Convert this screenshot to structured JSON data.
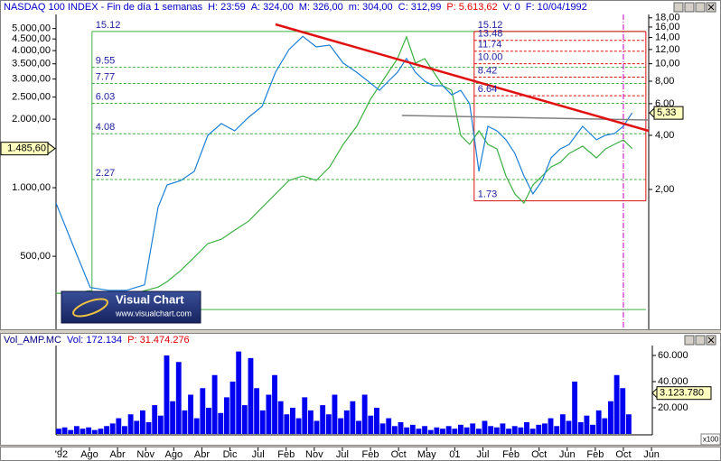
{
  "chart_data": {
    "type": "line",
    "header": [
      {
        "text": "NASDAQ 100 INDEX - Fin de día 1 semanas",
        "color": "#0000c8"
      },
      {
        "text": "H: 23:59",
        "color": "#0000c8"
      },
      {
        "text": "A: 324,00",
        "color": "#0000c8"
      },
      {
        "text": "M: 326,00",
        "color": "#0000c8"
      },
      {
        "text": "m: 304,00",
        "color": "#0000c8"
      },
      {
        "text": "C: 312,99",
        "color": "#0000c8"
      },
      {
        "text": "P: 5.613,62",
        "color": "#e00000"
      },
      {
        "text": "V: 0",
        "color": "#0000c8"
      },
      {
        "text": "F: 10/04/1992",
        "color": "#0000c8"
      }
    ],
    "x": [
      -0.19,
      0.39,
      1.03,
      1.67,
      2.32,
      2.96,
      3.44,
      3.76,
      4.24,
      4.73,
      5.21,
      5.69,
      6.17,
      6.66,
      7.14,
      7.62,
      8.1,
      8.59,
      9.07,
      9.55,
      10.03,
      10.51,
      11.0,
      11.32,
      11.64,
      11.96,
      12.28,
      12.6,
      12.93,
      13.25,
      13.57,
      13.89,
      14.21,
      14.53,
      14.86,
      15.18,
      15.5,
      15.82,
      16.14,
      16.46,
      16.78,
      17.11,
      17.43,
      17.75,
      18.07,
      18.55,
      19.04,
      19.36,
      19.68,
      20.0,
      20.31
    ],
    "xlim": [
      -0.19,
      21.03
    ],
    "xticks": [
      {
        "value": 0,
        "label": "'92"
      },
      {
        "value": 1,
        "label": "Ago"
      },
      {
        "value": 2,
        "label": "Abr"
      },
      {
        "value": 3,
        "label": "Nov"
      },
      {
        "value": 4,
        "label": "Ago"
      },
      {
        "value": 5,
        "label": "Abr"
      },
      {
        "value": 6,
        "label": "Dic"
      },
      {
        "value": 7,
        "label": "Jul"
      },
      {
        "value": 8,
        "label": "Feb"
      },
      {
        "value": 9,
        "label": "Nov"
      },
      {
        "value": 10,
        "label": "Jul"
      },
      {
        "value": 11,
        "label": "Feb"
      },
      {
        "value": 12,
        "label": "Oct"
      },
      {
        "value": 13,
        "label": "May"
      },
      {
        "value": 14,
        "label": "01"
      },
      {
        "value": 15,
        "label": "Jul"
      },
      {
        "value": 16,
        "label": "Feb"
      },
      {
        "value": 17,
        "label": "Oct"
      },
      {
        "value": 18,
        "label": "Jun"
      },
      {
        "value": 19,
        "label": "Feb"
      },
      {
        "value": 20,
        "label": "Oct"
      },
      {
        "value": 21,
        "label": "Jun"
      }
    ],
    "yscale": "log",
    "ylim": [
      239,
      5766
    ],
    "yticks": [
      {
        "value": 500,
        "label": "500,00"
      },
      {
        "value": 1000,
        "label": "1.000,00"
      },
      {
        "value": 2000,
        "label": "2.000,00"
      },
      {
        "value": 2500,
        "label": "2.500,00"
      },
      {
        "value": 3000,
        "label": "3.000,00"
      },
      {
        "value": 3500,
        "label": "3.500,00"
      },
      {
        "value": 4000,
        "label": "4.000,00"
      },
      {
        "value": 4500,
        "label": "4.500,00"
      },
      {
        "value": 5000,
        "label": "5.000,00"
      }
    ],
    "y2scale": "log",
    "y2lim": [
      0.334,
      18.8
    ],
    "y2ticks": [
      {
        "value": 2,
        "label": "2,00"
      },
      {
        "value": 4,
        "label": "4,00"
      },
      {
        "value": 6,
        "label": "6,00"
      },
      {
        "value": 8,
        "label": "8,00"
      },
      {
        "value": 10,
        "label": "10,00"
      },
      {
        "value": 12,
        "label": "12,00"
      },
      {
        "value": 14,
        "label": "14,00"
      },
      {
        "value": 16,
        "label": "16,00"
      },
      {
        "value": 18,
        "label": "18,00"
      }
    ],
    "series": [
      {
        "color": "#3cb043",
        "last_label": "1.485,60",
        "values": [
          344,
          344,
          353,
          329,
          335,
          353,
          366,
          387,
          432,
          495,
          568,
          594,
          651,
          713,
          818,
          938,
          1076,
          1126,
          1076,
          1234,
          1550,
          1860,
          2445,
          2804,
          3215,
          3687,
          4600,
          3522,
          3687,
          3215,
          2804,
          2678,
          1697,
          1550,
          1777,
          1550,
          1480,
          1126,
          938,
          856,
          1028,
          1126,
          1234,
          1291,
          1414,
          1522,
          1352,
          1480,
          1550,
          1622,
          1485.6
        ]
      },
      {
        "color": "#1c7fd6",
        "axis": "y2",
        "last_label": "5,33",
        "values": [
          1.68,
          1.0,
          0.57,
          0.55,
          0.55,
          0.59,
          1.59,
          2.12,
          2.24,
          2.52,
          4.0,
          4.65,
          4.24,
          5.04,
          5.79,
          8.97,
          11.98,
          14.2,
          12.4,
          12.7,
          10.08,
          8.97,
          7.81,
          7.12,
          8.0,
          8.97,
          10.7,
          8.97,
          8.0,
          7.55,
          7.55,
          6.72,
          7.12,
          5.99,
          2.52,
          4.49,
          4.24,
          3.78,
          3.17,
          2.38,
          1.89,
          2.24,
          3.0,
          3.36,
          3.56,
          4.49,
          3.78,
          4.0,
          4.09,
          4.49,
          5.33
        ]
      }
    ],
    "trendlines": [
      {
        "color": "#808080",
        "width": 1.5,
        "axis": "y2",
        "x": [
          12.12,
          20.9
        ],
        "values": [
          5.16,
          4.87
        ]
      },
      {
        "color": "#e01010",
        "width": 2.5,
        "axis": "y2",
        "x": [
          7.62,
          20.9
        ],
        "values": [
          16.56,
          4.24
        ]
      }
    ],
    "fibonacci": [
      {
        "color": "#3cb043",
        "x": [
          1.09,
          20.8
        ],
        "closed": false,
        "base": 0.43,
        "levels": [
          15.12,
          9.55,
          7.77,
          6.03,
          4.08,
          2.27
        ]
      },
      {
        "color": "#e01010",
        "x": [
          14.69,
          20.8
        ],
        "closed": true,
        "levels": [
          15.12,
          13.48,
          11.74,
          {
            "value": 10,
            "label": "10.00"
          },
          8.42,
          6.64,
          1.73
        ]
      }
    ],
    "marker_x": 20.0,
    "logo": {
      "title": "Visual Chart",
      "url": "www.visualchart.com"
    },
    "volume": {
      "header": [
        {
          "text": "Vol_AMP.MC",
          "color": "#000080"
        },
        {
          "text": "Vol: 172.134",
          "color": "#0000c8"
        },
        {
          "text": "P: 31.474.276",
          "color": "#e00000"
        }
      ],
      "color": "#0000f0",
      "ylim": [
        0,
        66207
      ],
      "yticks": [
        {
          "value": 20000,
          "label": "20.000"
        },
        {
          "value": 40000,
          "label": "40.000"
        },
        {
          "value": 60000,
          "label": "60.000"
        }
      ],
      "current": {
        "value": 31237.8,
        "label": "3.123.780"
      },
      "multiplier": "x100",
      "values": [
        4000,
        5000,
        3000,
        6000,
        4000,
        5000,
        3000,
        4000,
        6000,
        8000,
        12000,
        6000,
        15000,
        10000,
        18000,
        9000,
        22000,
        14000,
        60000,
        25000,
        55000,
        18000,
        30000,
        12000,
        35000,
        20000,
        45000,
        16000,
        28000,
        40000,
        63000,
        22000,
        58000,
        35000,
        18000,
        30000,
        45000,
        25000,
        15000,
        20000,
        12000,
        28000,
        18000,
        10000,
        22000,
        15000,
        30000,
        12000,
        18000,
        25000,
        10000,
        30000,
        14000,
        20000,
        8000,
        12000,
        6000,
        9000,
        5000,
        7000,
        4000,
        6000,
        3000,
        5000,
        4000,
        6000,
        4000,
        7000,
        5000,
        8000,
        4000,
        10000,
        6000,
        5000,
        8000,
        4000,
        6000,
        5000,
        9000,
        4000,
        7000,
        8000,
        12000,
        6000,
        15000,
        10000,
        40000,
        9000,
        14000,
        7000,
        18000,
        12000,
        25000,
        45000,
        35000,
        15000
      ]
    }
  }
}
